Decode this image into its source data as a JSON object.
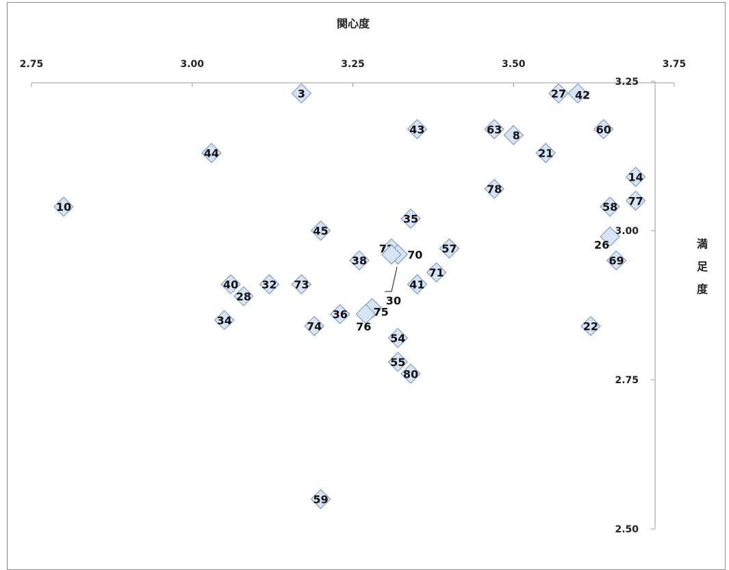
{
  "chart_data": {
    "type": "scatter",
    "xlabel": "関心度",
    "ylabel": "満足度",
    "xlim": [
      2.75,
      3.75
    ],
    "ylim": [
      2.5,
      3.25
    ],
    "x_ticks": [
      "2.75",
      "3.00",
      "3.25",
      "3.50",
      "3.75"
    ],
    "y_ticks": [
      "3.25",
      "3.00",
      "2.75",
      "2.50"
    ],
    "points": [
      {
        "label": "3",
        "x": 3.17,
        "y": 3.23
      },
      {
        "label": "27",
        "x": 3.57,
        "y": 3.23
      },
      {
        "label": "42",
        "x": 3.6,
        "y": 3.23
      },
      {
        "label": "43",
        "x": 3.35,
        "y": 3.17
      },
      {
        "label": "63",
        "x": 3.47,
        "y": 3.17
      },
      {
        "label": "8",
        "x": 3.5,
        "y": 3.16
      },
      {
        "label": "60",
        "x": 3.64,
        "y": 3.17
      },
      {
        "label": "44",
        "x": 3.03,
        "y": 3.13
      },
      {
        "label": "21",
        "x": 3.55,
        "y": 3.13
      },
      {
        "label": "14",
        "x": 3.69,
        "y": 3.09
      },
      {
        "label": "78",
        "x": 3.47,
        "y": 3.07
      },
      {
        "label": "77",
        "x": 3.69,
        "y": 3.05
      },
      {
        "label": "10",
        "x": 2.8,
        "y": 3.04
      },
      {
        "label": "58",
        "x": 3.65,
        "y": 3.04
      },
      {
        "label": "35",
        "x": 3.34,
        "y": 3.02
      },
      {
        "label": "45",
        "x": 3.2,
        "y": 3.0
      },
      {
        "label": "26",
        "x": 3.65,
        "y": 2.99
      },
      {
        "label": "57",
        "x": 3.4,
        "y": 2.97
      },
      {
        "label": "72",
        "x": 3.31,
        "y": 2.97
      },
      {
        "label": "70",
        "x": 3.32,
        "y": 2.96
      },
      {
        "label": "38",
        "x": 3.26,
        "y": 2.95
      },
      {
        "label": "69",
        "x": 3.66,
        "y": 2.95
      },
      {
        "label": "71",
        "x": 3.38,
        "y": 2.93
      },
      {
        "label": "30",
        "x": 3.31,
        "y": 2.96
      },
      {
        "label": "40",
        "x": 3.06,
        "y": 2.91
      },
      {
        "label": "32",
        "x": 3.12,
        "y": 2.91
      },
      {
        "label": "73",
        "x": 3.17,
        "y": 2.91
      },
      {
        "label": "41",
        "x": 3.35,
        "y": 2.91
      },
      {
        "label": "28",
        "x": 3.08,
        "y": 2.89
      },
      {
        "label": "75",
        "x": 3.28,
        "y": 2.87
      },
      {
        "label": "36",
        "x": 3.23,
        "y": 2.86
      },
      {
        "label": "76",
        "x": 3.27,
        "y": 2.86
      },
      {
        "label": "34",
        "x": 3.05,
        "y": 2.85
      },
      {
        "label": "74",
        "x": 3.19,
        "y": 2.84
      },
      {
        "label": "22",
        "x": 3.62,
        "y": 2.84
      },
      {
        "label": "54",
        "x": 3.32,
        "y": 2.82
      },
      {
        "label": "55",
        "x": 3.32,
        "y": 2.78
      },
      {
        "label": "80",
        "x": 3.34,
        "y": 2.76
      },
      {
        "label": "59",
        "x": 3.2,
        "y": 2.55
      }
    ]
  }
}
